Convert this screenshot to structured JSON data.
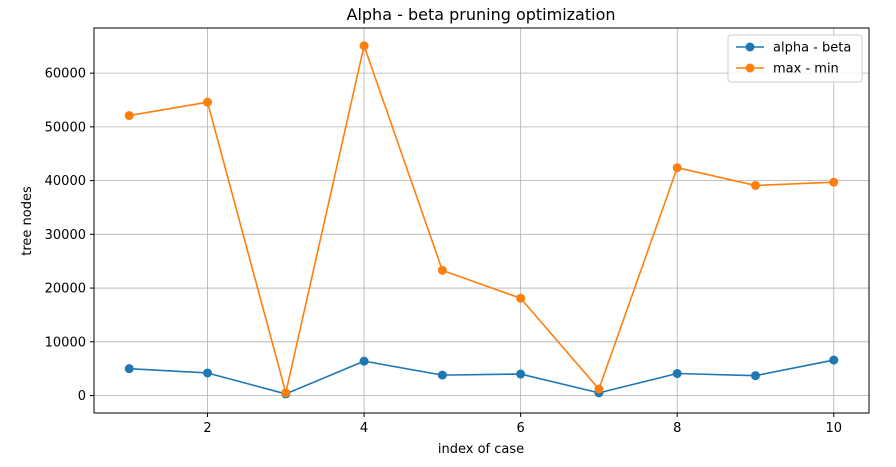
{
  "chart_data": {
    "type": "line",
    "title": "Alpha - beta pruning optimization",
    "xlabel": "index of case",
    "ylabel": "tree nodes",
    "x": [
      1,
      2,
      3,
      4,
      5,
      6,
      7,
      8,
      9,
      10
    ],
    "xlim": [
      0.55,
      10.45
    ],
    "ylim": [
      -3250,
      68400
    ],
    "xticks": [
      2,
      4,
      6,
      8,
      10
    ],
    "yticks": [
      0,
      10000,
      20000,
      30000,
      40000,
      50000,
      60000
    ],
    "grid": true,
    "legend_position": "top-right",
    "series": [
      {
        "name": "alpha - beta",
        "color": "#1f77b4",
        "values": [
          5000,
          4200,
          300,
          6400,
          3800,
          4000,
          500,
          4100,
          3700,
          6600
        ]
      },
      {
        "name": "max - min",
        "color": "#ff7f0e",
        "values": [
          52100,
          54600,
          500,
          65100,
          23300,
          18100,
          1200,
          42400,
          39100,
          39700
        ]
      }
    ]
  }
}
